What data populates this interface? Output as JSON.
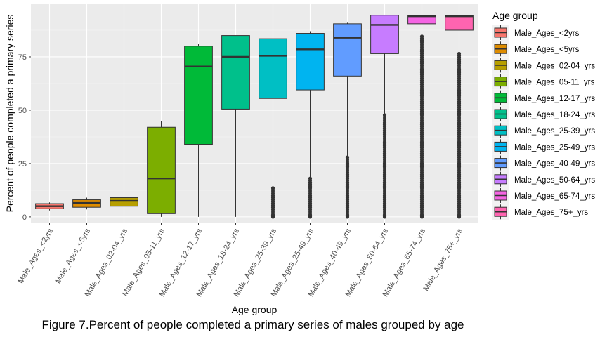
{
  "figure_caption": "Figure 7.Percent of people completed a primary series of males grouped by age",
  "chart_data": {
    "type": "box",
    "xlabel": "Age group",
    "ylabel": "Percent of people completed a primary series",
    "ylim": [
      -3,
      100
    ],
    "y_ticks": [
      0,
      25,
      50,
      75
    ],
    "grid": true,
    "legend": {
      "title": "Age group",
      "position": "right"
    },
    "categories": [
      "Male_Ages_<2yrs",
      "Male_Ages_<5yrs",
      "Male_Ages_02-04_yrs",
      "Male_Ages_05-11_yrs",
      "Male_Ages_12-17_yrs",
      "Male_Ages_18-24_yrs",
      "Male_Ages_25-39_yrs",
      "Male_Ages_25-49_yrs",
      "Male_Ages_40-49_yrs",
      "Male_Ages_50-64_yrs",
      "Male_Ages_65-74_yrs",
      "Male_Ages_75+_yrs"
    ],
    "legend_labels": [
      "Male_Ages_<2yrs",
      "Male_Ages_<5yrs",
      "Male_Ages_02-04_yrs",
      "Male_Ages_05-11_yrs",
      "Male_Ages_12-17_yrs",
      "Male_Ages_18-24_yrs",
      "Male_Ages_25-39_yrs",
      "Male_Ages_25-49_yrs",
      "Male_Ages_40-49_yrs",
      "Male_Ages_50-64_yrs",
      "Male_Ages_65-74_yrs",
      "Male_Ages_75+_yrs"
    ],
    "colors": [
      "#F8766D",
      "#DE8C00",
      "#B79F00",
      "#7CAE00",
      "#00BA38",
      "#00C08B",
      "#00BFC4",
      "#00B4F0",
      "#619CFF",
      "#C77CFF",
      "#F564E3",
      "#FF64B0"
    ],
    "boxes": [
      {
        "min": 3.0,
        "q1": 3.8,
        "median": 5.0,
        "q3": 6.2,
        "max": 6.8,
        "outliers_range": null
      },
      {
        "min": 3.5,
        "q1": 4.5,
        "median": 6.5,
        "q3": 8.0,
        "max": 9.0,
        "outliers_range": null
      },
      {
        "min": 4.0,
        "q1": 5.0,
        "median": 7.5,
        "q3": 9.0,
        "max": 10.0,
        "outliers_range": null
      },
      {
        "min": 0,
        "q1": 1.5,
        "median": 18,
        "q3": 42,
        "max": 45,
        "outliers_range": null
      },
      {
        "min": 0,
        "q1": 34,
        "median": 70.5,
        "q3": 80,
        "max": 81,
        "outliers_range": null
      },
      {
        "min": 0,
        "q1": 50.5,
        "median": 75,
        "q3": 85,
        "max": 85,
        "outliers_range": null
      },
      {
        "min": 0,
        "q1": 55.5,
        "median": 75.5,
        "q3": 83.5,
        "max": 84.5,
        "outliers_range": [
          0,
          13.5
        ]
      },
      {
        "min": 0,
        "q1": 59.5,
        "median": 78.5,
        "q3": 86,
        "max": 87,
        "outliers_range": [
          0,
          18.5
        ]
      },
      {
        "min": 0,
        "q1": 66,
        "median": 84,
        "q3": 90.5,
        "max": 91,
        "outliers_range": [
          0,
          28.5
        ]
      },
      {
        "min": 0,
        "q1": 76.5,
        "median": 90,
        "q3": 94.5,
        "max": 94.5,
        "outliers_range": [
          0,
          48.5
        ]
      },
      {
        "min": 0,
        "q1": 90.5,
        "median": 94,
        "q3": 94.5,
        "max": 94.5,
        "outliers_range": [
          0,
          85
        ]
      },
      {
        "min": 0,
        "q1": 87.5,
        "median": 94,
        "q3": 94.5,
        "max": 94.5,
        "outliers_range": [
          0,
          76.5
        ]
      }
    ]
  }
}
